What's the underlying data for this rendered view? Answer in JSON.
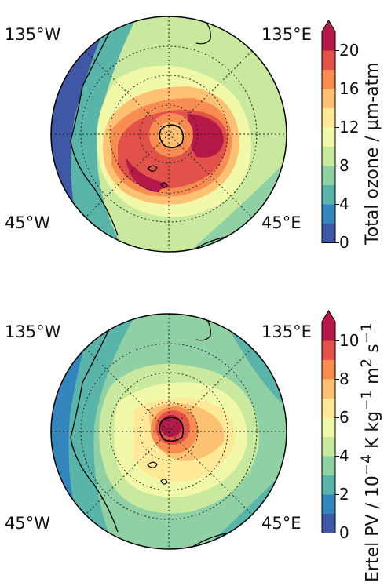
{
  "panels": [
    {
      "id": "ozone",
      "colorbar": {
        "title": "Total ozone / μm-atm",
        "ticks": [
          "0",
          "4",
          "8",
          "12",
          "16",
          "20"
        ],
        "extend": "max"
      },
      "lon_labels": {
        "nw": "135°W",
        "ne": "135°E",
        "sw": "45°W",
        "se": "45°E"
      }
    },
    {
      "id": "pv",
      "colorbar": {
        "title_html": "Ertel PV / 10<sup>−4</sup> K kg<sup>−1</sup> m<sup>2</sup> s<sup>−1</sup>",
        "ticks": [
          "0",
          "2",
          "4",
          "6",
          "8",
          "10"
        ],
        "extend": "max"
      },
      "lon_labels": {
        "nw": "135°W",
        "ne": "135°E",
        "sw": "45°W",
        "se": "45°E"
      }
    }
  ],
  "palette": [
    "#3f58a6",
    "#3286bc",
    "#59b4aa",
    "#8fd1a4",
    "#c8e99e",
    "#f1f9a9",
    "#fee999",
    "#fdc173",
    "#f88d52",
    "#e2514a",
    "#b41947"
  ]
}
